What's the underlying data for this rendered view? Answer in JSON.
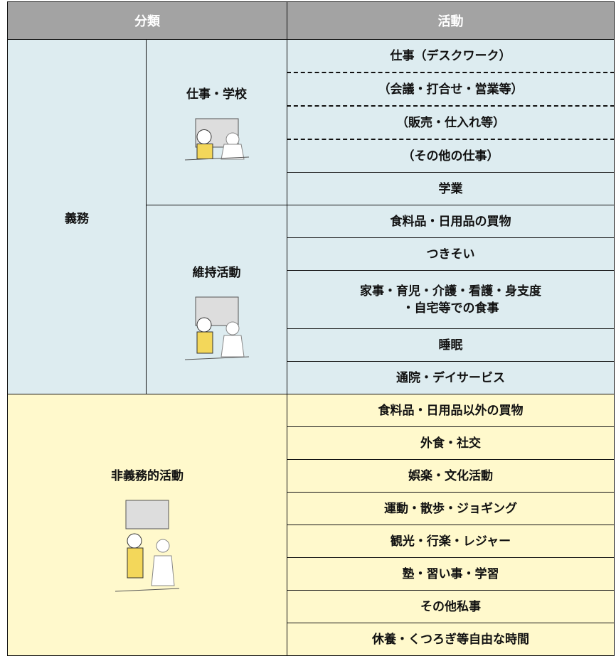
{
  "table": {
    "header": [
      "分類",
      "活動"
    ],
    "groups": [
      {
        "label": "義務",
        "subgroups": [
          {
            "label": "仕事・学校",
            "activities": [
              "仕事（デスクワーク）",
              "（会議・打合せ・営業等）",
              "（販売・仕入れ等）",
              "（その他の仕事）",
              "学業"
            ]
          },
          {
            "label": "維持活動",
            "activities": [
              "食料品・日用品の買物",
              "つきそい",
              "家事・育児・介護・看護・身支度\n・自宅等での食事",
              "睡眠",
              "通院・デイサービス"
            ]
          }
        ]
      },
      {
        "label": "非義務的活動",
        "activities": [
          "食料品・日用品以外の買物",
          "外食・社交",
          "娯楽・文化活動",
          "運動・散歩・ジョギング",
          "観光・行楽・レジャー",
          "塾・習い事・学習",
          "その他私事",
          "休養・くつろぎ等自由な時間"
        ]
      }
    ]
  }
}
